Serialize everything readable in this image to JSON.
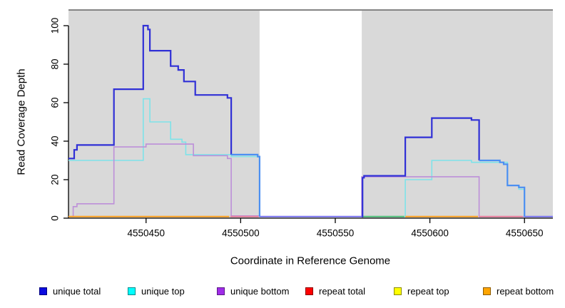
{
  "chart_data": {
    "type": "line",
    "subtype": "step-coverage",
    "title": "",
    "xlabel": "Coordinate in Reference Genome",
    "ylabel": "Read Coverage Depth",
    "xlim": [
      4550409,
      4550665
    ],
    "ylim": [
      0,
      108
    ],
    "grid": false,
    "legend_position": "bottom",
    "x_ticks": [
      {
        "value": 4550450,
        "label": "4550450"
      },
      {
        "value": 4550500,
        "label": "4550500"
      },
      {
        "value": 4550550,
        "label": "4550550"
      },
      {
        "value": 4550600,
        "label": "4550600"
      },
      {
        "value": 4550650,
        "label": "4550650"
      }
    ],
    "y_ticks": [
      {
        "value": 0,
        "label": "0"
      },
      {
        "value": 20,
        "label": "20"
      },
      {
        "value": 40,
        "label": "40"
      },
      {
        "value": 60,
        "label": "60"
      },
      {
        "value": 80,
        "label": "80"
      },
      {
        "value": 100,
        "label": "100"
      }
    ],
    "shaded_regions": [
      {
        "from": 4550409,
        "to": 4550510,
        "color": "#d9d9d9"
      },
      {
        "from": 4550564,
        "to": 4550665,
        "color": "#d9d9d9"
      }
    ],
    "top_border_color": "#848484",
    "axis_color": "#000000",
    "colors": {
      "unique_total_dark": "#3030d6",
      "unique_total_overlap_azure": "#4b8ff2",
      "zero_blue_violet": "#7b74f0",
      "unique_top_cyan": "#7ee3e9",
      "unique_bottom_purple": "#bd8fd9",
      "zero_orange": "#ff9f1f",
      "zero_green": "#50be78",
      "zero_pink": "#e87d9b"
    },
    "polylines": [
      {
        "name": "unique top",
        "color": "#7ee3e9",
        "width": 1.6,
        "steps": [
          [
            4550409,
            30
          ],
          [
            4550448.5,
            62
          ],
          [
            4550452,
            50
          ],
          [
            4550463,
            41
          ],
          [
            4550469,
            39.5
          ],
          [
            4550471,
            33
          ],
          [
            4550495,
            32
          ],
          [
            4550510,
            0.8
          ],
          [
            4550587,
            20
          ],
          [
            4550601,
            30
          ],
          [
            4550622,
            29
          ],
          [
            4550641,
            17
          ],
          [
            4550647,
            15
          ],
          [
            4550650,
            0.8
          ]
        ],
        "end": 4550665
      },
      {
        "name": "unique bottom",
        "color": "#bd8fd9",
        "width": 1.6,
        "steps": [
          [
            4550409,
            0.8
          ],
          [
            4550411.5,
            6
          ],
          [
            4550413.5,
            7.5
          ],
          [
            4550433,
            37
          ],
          [
            4550450,
            38.5
          ],
          [
            4550475,
            32.5
          ],
          [
            4550493,
            31
          ],
          [
            4550495,
            1.2
          ],
          [
            4550510,
            0.8
          ],
          [
            4550564,
            21.5
          ],
          [
            4550626,
            0.8
          ]
        ],
        "end": 4550665
      },
      {
        "name": "zero orange left",
        "color": "#ff9f1f",
        "width": 2,
        "steps": [
          [
            4550409,
            0.8
          ]
        ],
        "end": 4550494
      },
      {
        "name": "zero pink left",
        "color": "#e87d9b",
        "width": 2,
        "steps": [
          [
            4550494.5,
            0.8
          ]
        ],
        "end": 4550509.5
      },
      {
        "name": "zero blue gap",
        "color": "#7b74f0",
        "width": 2,
        "steps": [
          [
            4550510,
            0.8
          ]
        ],
        "end": 4550564
      },
      {
        "name": "zero green",
        "color": "#50be78",
        "width": 2,
        "steps": [
          [
            4550564,
            0.8
          ]
        ],
        "end": 4550586.5
      },
      {
        "name": "zero orange right",
        "color": "#ff9f1f",
        "width": 2,
        "steps": [
          [
            4550587,
            0.8
          ]
        ],
        "end": 4550625.5
      },
      {
        "name": "zero pink right",
        "color": "#e87d9b",
        "width": 2,
        "steps": [
          [
            4550626,
            0.8
          ]
        ],
        "end": 4550649
      },
      {
        "name": "zero blue right",
        "color": "#7b74f0",
        "width": 2,
        "steps": [
          [
            4550650,
            0.8
          ]
        ],
        "end": 4550665
      },
      {
        "name": "unique total left",
        "color": "#3030d6",
        "width": 2.2,
        "steps": [
          [
            4550409,
            31
          ],
          [
            4550412,
            35.5
          ],
          [
            4550413.5,
            38
          ],
          [
            4550433,
            67
          ],
          [
            4550448.5,
            100
          ],
          [
            4550451,
            98
          ],
          [
            4550452,
            87
          ],
          [
            4550463,
            79
          ],
          [
            4550467,
            77
          ],
          [
            4550470,
            71
          ],
          [
            4550476,
            64
          ],
          [
            4550493,
            62.5
          ],
          [
            4550495,
            33
          ]
        ],
        "end": 4550495
      },
      {
        "name": "unique total left overlap",
        "color": "#4b8ff2",
        "width": 2.2,
        "steps": [
          [
            4550495,
            33
          ],
          [
            4550509,
            32
          ],
          [
            4550510,
            0.8
          ]
        ],
        "end": 4550510
      },
      {
        "name": "unique total right",
        "color": "#3030d6",
        "width": 2.2,
        "steps": [
          [
            4550564,
            0.8
          ],
          [
            4550564.4,
            21
          ],
          [
            4550565.2,
            22
          ],
          [
            4550587,
            42
          ],
          [
            4550601,
            52
          ],
          [
            4550622,
            51
          ],
          [
            4550626,
            30
          ]
        ],
        "end": 4550626
      },
      {
        "name": "unique total right overlap",
        "color": "#4b8ff2",
        "width": 2.2,
        "steps": [
          [
            4550626,
            30
          ],
          [
            4550637,
            29
          ],
          [
            4550639,
            28
          ],
          [
            4550641,
            17
          ],
          [
            4550647,
            16
          ],
          [
            4550650,
            0.8
          ]
        ],
        "end": 4550650
      }
    ],
    "legend": [
      {
        "label": "unique total",
        "fill": "#0b0bdf",
        "border": "#000080"
      },
      {
        "label": "unique top",
        "fill": "#00ffff",
        "border": "#008b8b"
      },
      {
        "label": "unique bottom",
        "fill": "#a02ce8",
        "border": "#5a1a86"
      },
      {
        "label": "repeat total",
        "fill": "#ff0000",
        "border": "#8b0000"
      },
      {
        "label": "repeat top",
        "fill": "#ffff00",
        "border": "#8b8b00"
      },
      {
        "label": "repeat bottom",
        "fill": "#ffa500",
        "border": "#8b5a00"
      }
    ]
  }
}
